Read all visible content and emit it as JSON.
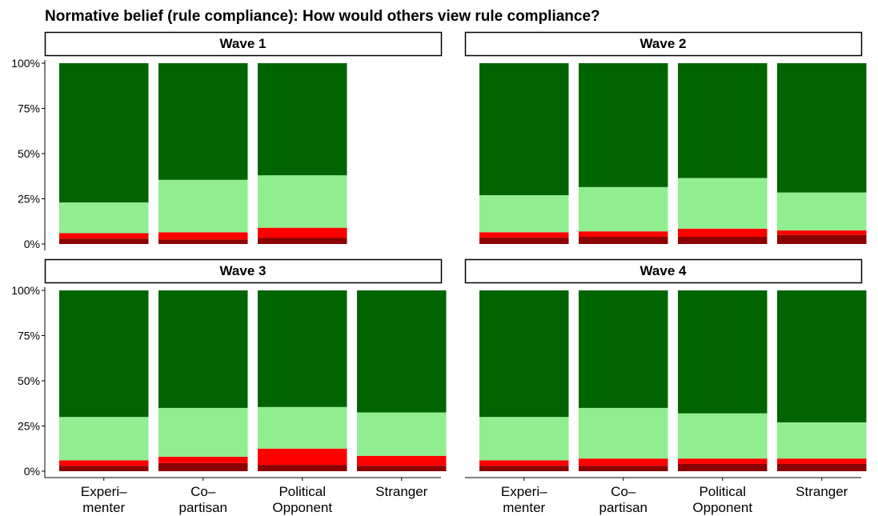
{
  "chart_data": {
    "type": "bar",
    "stacked": true,
    "title": "Normative belief (rule compliance): How would others view rule compliance?",
    "xlabel": "",
    "ylabel": "",
    "ylim": [
      0,
      1
    ],
    "y_ticks": [
      "0%",
      "25%",
      "50%",
      "75%",
      "100%"
    ],
    "categories": [
      "Experi–\nmenter",
      "Co–\npartisan",
      "Political\nOpponent",
      "Stranger"
    ],
    "legend": "none",
    "grid": false,
    "colors": [
      "#8b0000",
      "#ff0000",
      "#90ee90",
      "#006400"
    ],
    "panels": [
      {
        "label": "Wave 1",
        "series": [
          {
            "values": [
              0.03,
              0.025,
              0.035,
              null
            ]
          },
          {
            "values": [
              0.03,
              0.04,
              0.055,
              null
            ]
          },
          {
            "values": [
              0.17,
              0.29,
              0.29,
              null
            ]
          },
          {
            "values": [
              0.77,
              0.645,
              0.62,
              null
            ]
          }
        ]
      },
      {
        "label": "Wave 2",
        "series": [
          {
            "values": [
              0.035,
              0.04,
              0.04,
              0.05
            ]
          },
          {
            "values": [
              0.03,
              0.03,
              0.045,
              0.025
            ]
          },
          {
            "values": [
              0.205,
              0.245,
              0.28,
              0.21
            ]
          },
          {
            "values": [
              0.73,
              0.685,
              0.635,
              0.715
            ]
          }
        ]
      },
      {
        "label": "Wave 3",
        "series": [
          {
            "values": [
              0.03,
              0.045,
              0.035,
              0.03
            ]
          },
          {
            "values": [
              0.03,
              0.035,
              0.09,
              0.055
            ]
          },
          {
            "values": [
              0.24,
              0.27,
              0.23,
              0.24
            ]
          },
          {
            "values": [
              0.7,
              0.65,
              0.645,
              0.675
            ]
          }
        ]
      },
      {
        "label": "Wave 4",
        "series": [
          {
            "values": [
              0.03,
              0.03,
              0.04,
              0.04
            ]
          },
          {
            "values": [
              0.03,
              0.04,
              0.03,
              0.03
            ]
          },
          {
            "values": [
              0.24,
              0.28,
              0.25,
              0.2
            ]
          },
          {
            "values": [
              0.7,
              0.65,
              0.68,
              0.73
            ]
          }
        ]
      }
    ]
  }
}
